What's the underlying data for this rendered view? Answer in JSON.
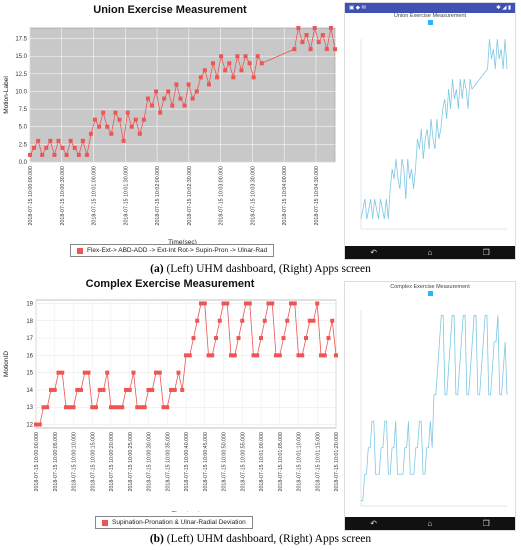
{
  "panel_a": {
    "dashboard": {
      "title": "Union Exercise Measurement",
      "xlabel": "Time(sec)",
      "ylabel": "Motion-Label",
      "legend": "Flex-Ext-> ABD-ADD -> Ext-Int Rot-> Supin-Pron -> Ulnar-Rad",
      "series_color": "#ee5555",
      "background_color": "#c8c8c8"
    },
    "app": {
      "title": "Union Exercise Measurement",
      "series_color": "#7ec8e3"
    },
    "caption_label": "(a)",
    "caption_text": " (Left) UHM dashboard, (Right) Apps screen"
  },
  "panel_b": {
    "dashboard": {
      "title": "Complex Exercise Measurement",
      "xlabel": "Time(sec)",
      "ylabel": "MotionID",
      "legend": "Supination-Pronation & Ulnar-Radial Deviation",
      "series_color": "#ee5555",
      "background_color": "#ffffff"
    },
    "app": {
      "title": "Complex Exercise Measurement",
      "series_color": "#7ec8e3"
    },
    "caption_label": "(b)",
    "caption_text": " (Left) UHM dashboard, (Right) Apps screen"
  },
  "chart_data": [
    {
      "type": "line",
      "title": "Union Exercise Measurement",
      "xlabel": "Time(sec)",
      "ylabel": "Motion-Label",
      "ylim": [
        0,
        19
      ],
      "yticks": [
        "0.0",
        "2.5",
        "5.0",
        "7.5",
        "10.0",
        "12.5",
        "15.0",
        "17.5"
      ],
      "xticks": [
        "2018-07-15 10:00:00.000",
        "2018-07-15 10:00:30.000",
        "2018-07-15 10:01:00.000",
        "2018-07-15 10:01:30.000",
        "2018-07-15 10:02:00.000",
        "2018-07-15 10:02:30.000",
        "2018-07-15 10:03:00.000",
        "2018-07-15 10:03:30.000",
        "2018-07-15 10:04:00.000",
        "2018-07-15 10:04:30.000"
      ],
      "x_range_sec": [
        0,
        300
      ],
      "series": [
        {
          "name": "Flex-Ext-> ABD-ADD -> Ext-Int Rot-> Supin-Pron -> Ulnar-Rad",
          "x": [
            0,
            4,
            8,
            12,
            16,
            20,
            24,
            28,
            32,
            36,
            40,
            44,
            48,
            52,
            56,
            60,
            64,
            68,
            72,
            76,
            80,
            84,
            88,
            92,
            96,
            100,
            104,
            108,
            112,
            116,
            120,
            124,
            128,
            132,
            136,
            140,
            144,
            148,
            152,
            156,
            160,
            164,
            168,
            172,
            176,
            180,
            184,
            188,
            192,
            196,
            200,
            204,
            208,
            212,
            216,
            220,
            224,
            228,
            260,
            264,
            268,
            272,
            276,
            280,
            284,
            288,
            292,
            296,
            300
          ],
          "y": [
            1,
            2,
            3,
            1,
            2,
            3,
            1,
            3,
            2,
            1,
            3,
            2,
            1,
            3,
            1,
            4,
            6,
            5,
            7,
            5,
            4,
            7,
            6,
            3,
            7,
            5,
            6,
            4,
            6,
            9,
            8,
            10,
            7,
            9,
            10,
            8,
            11,
            9,
            8,
            11,
            9,
            10,
            12,
            13,
            11,
            14,
            12,
            15,
            13,
            14,
            12,
            15,
            13,
            15,
            14,
            12,
            15,
            14,
            16,
            19,
            17,
            18,
            16,
            19,
            17,
            18,
            16,
            19,
            16
          ]
        }
      ]
    },
    {
      "type": "line",
      "title": "Complex Exercise Measurement",
      "xlabel": "Time(sec)",
      "ylabel": "MotionID",
      "ylim": [
        11.8,
        19.2
      ],
      "yticks": [
        "12",
        "13",
        "14",
        "15",
        "16",
        "17",
        "18",
        "19"
      ],
      "xticks": [
        "2018-07-15 10:00:00.000",
        "2018-07-15 10:00:05.000",
        "2018-07-15 10:00:10.000",
        "2018-07-15 10:00:15.000",
        "2018-07-15 10:00:20.000",
        "2018-07-15 10:00:25.000",
        "2018-07-15 10:00:30.000",
        "2018-07-15 10:00:35.000",
        "2018-07-15 10:00:40.000",
        "2018-07-15 10:00:45.000",
        "2018-07-15 10:00:50.000",
        "2018-07-15 10:00:55.000",
        "2018-07-15 10:01:00.000",
        "2018-07-15 10:01:05.000",
        "2018-07-15 10:01:10.000",
        "2018-07-15 10:01:15.000",
        "2018-07-15 10:01:20.000"
      ],
      "x_range_sec": [
        0,
        80
      ],
      "series": [
        {
          "name": "Supination-Pronation & Ulnar-Radial Deviation",
          "x": [
            0,
            1,
            2,
            3,
            4,
            5,
            6,
            7,
            8,
            9,
            10,
            11,
            12,
            13,
            14,
            15,
            16,
            17,
            18,
            19,
            20,
            21,
            22,
            23,
            24,
            25,
            26,
            27,
            28,
            29,
            30,
            31,
            32,
            33,
            34,
            35,
            36,
            37,
            38,
            39,
            40,
            41,
            42,
            43,
            44,
            45,
            46,
            47,
            48,
            49,
            50,
            51,
            52,
            53,
            54,
            55,
            56,
            57,
            58,
            59,
            60,
            61,
            62,
            63,
            64,
            65,
            66,
            67,
            68,
            69,
            70,
            71,
            72,
            73,
            74,
            75,
            76,
            77,
            78,
            79,
            80
          ],
          "y": [
            12,
            12,
            13,
            13,
            14,
            14,
            15,
            15,
            13,
            13,
            13,
            14,
            14,
            15,
            15,
            13,
            13,
            14,
            14,
            15,
            13,
            13,
            13,
            13,
            14,
            14,
            15,
            13,
            13,
            13,
            14,
            14,
            15,
            15,
            13,
            13,
            14,
            14,
            15,
            14,
            16,
            16,
            17,
            18,
            19,
            19,
            16,
            16,
            17,
            18,
            19,
            19,
            16,
            16,
            17,
            18,
            19,
            19,
            16,
            16,
            17,
            18,
            19,
            19,
            16,
            16,
            17,
            18,
            19,
            19,
            16,
            16,
            17,
            18,
            18,
            19,
            16,
            16,
            17,
            18,
            16
          ]
        }
      ]
    }
  ]
}
